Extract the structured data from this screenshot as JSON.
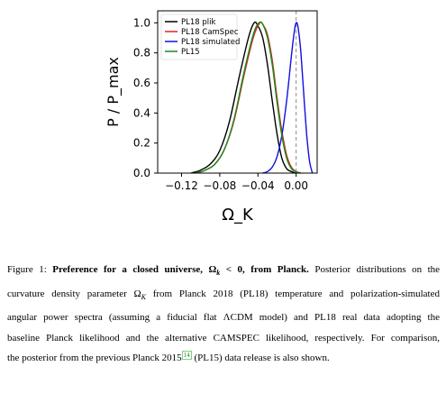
{
  "chart_data": {
    "type": "line",
    "xlabel": "Ω_K",
    "ylabel": "P / P_max",
    "xlim": [
      -0.145,
      0.022
    ],
    "ylim": [
      0,
      1.08
    ],
    "xticks": [
      -0.12,
      -0.08,
      -0.04,
      0.0
    ],
    "xtick_labels": [
      "−0.12",
      "−0.08",
      "−0.04",
      "0.00"
    ],
    "yticks": [
      0.0,
      0.2,
      0.4,
      0.6,
      0.8,
      1.0
    ],
    "ytick_labels": [
      "0.0",
      "0.2",
      "0.4",
      "0.6",
      "0.8",
      "1.0"
    ],
    "reference_line": {
      "x": 0.0,
      "style": "dashed",
      "color": "#888888"
    },
    "legend_position": "top-left",
    "series": [
      {
        "name": "PL18 plik",
        "color": "#000000",
        "x": [
          -0.11,
          -0.1,
          -0.09,
          -0.08,
          -0.07,
          -0.06,
          -0.05,
          -0.044,
          -0.04,
          -0.035,
          -0.03,
          -0.025,
          -0.02,
          -0.015,
          -0.01,
          -0.005,
          0.0
        ],
        "y": [
          0.0,
          0.02,
          0.06,
          0.15,
          0.34,
          0.63,
          0.9,
          1.0,
          0.98,
          0.9,
          0.72,
          0.48,
          0.26,
          0.1,
          0.03,
          0.01,
          0.0
        ]
      },
      {
        "name": "PL18 CamSpec",
        "color": "#e02020",
        "x": [
          -0.105,
          -0.095,
          -0.085,
          -0.075,
          -0.065,
          -0.055,
          -0.045,
          -0.038,
          -0.034,
          -0.03,
          -0.025,
          -0.02,
          -0.015,
          -0.01,
          -0.005,
          0.0,
          0.005
        ],
        "y": [
          0.0,
          0.02,
          0.06,
          0.16,
          0.35,
          0.64,
          0.9,
          1.0,
          0.98,
          0.92,
          0.75,
          0.5,
          0.28,
          0.12,
          0.04,
          0.01,
          0.0
        ]
      },
      {
        "name": "PL18 simulated",
        "color": "#1010e0",
        "x": [
          -0.035,
          -0.03,
          -0.025,
          -0.02,
          -0.015,
          -0.01,
          -0.005,
          -0.002,
          0.0,
          0.002,
          0.005,
          0.008,
          0.011,
          0.014,
          0.017
        ],
        "y": [
          0.0,
          0.01,
          0.04,
          0.11,
          0.25,
          0.48,
          0.78,
          0.94,
          1.0,
          0.97,
          0.8,
          0.52,
          0.26,
          0.08,
          0.0
        ]
      },
      {
        "name": "PL15",
        "color": "#1a8a1a",
        "x": [
          -0.105,
          -0.095,
          -0.085,
          -0.075,
          -0.065,
          -0.055,
          -0.045,
          -0.039,
          -0.035,
          -0.03,
          -0.025,
          -0.02,
          -0.015,
          -0.01,
          -0.005,
          0.0,
          0.004
        ],
        "y": [
          0.0,
          0.02,
          0.06,
          0.16,
          0.36,
          0.66,
          0.92,
          1.0,
          0.99,
          0.9,
          0.72,
          0.47,
          0.25,
          0.1,
          0.03,
          0.01,
          0.0
        ]
      }
    ]
  },
  "caption": {
    "prefix": "Figure 1: ",
    "bold": "Preference for a closed universe, Ω",
    "bold_sub": "k",
    "bold_rest": " < 0, from Planck.",
    "line1_rest": " Posterior distributions on the",
    "line2": "curvature density parameter Ω",
    "line2_sub": "K",
    "line2_rest": " from Planck 2018 (PL18) temperature and polarization-simulated",
    "line3": "angular power spectra (assuming a fiducial flat ΛCDM model) and PL18 real data adopting the",
    "line4": "baseline Planck likelihood and the alternative CAMSPEC likelihood, respectively. For comparison,",
    "line5_a": "the posterior from the previous Planck 2015",
    "line5_ref": "14",
    "line5_b": " (PL15) data release is also shown."
  }
}
